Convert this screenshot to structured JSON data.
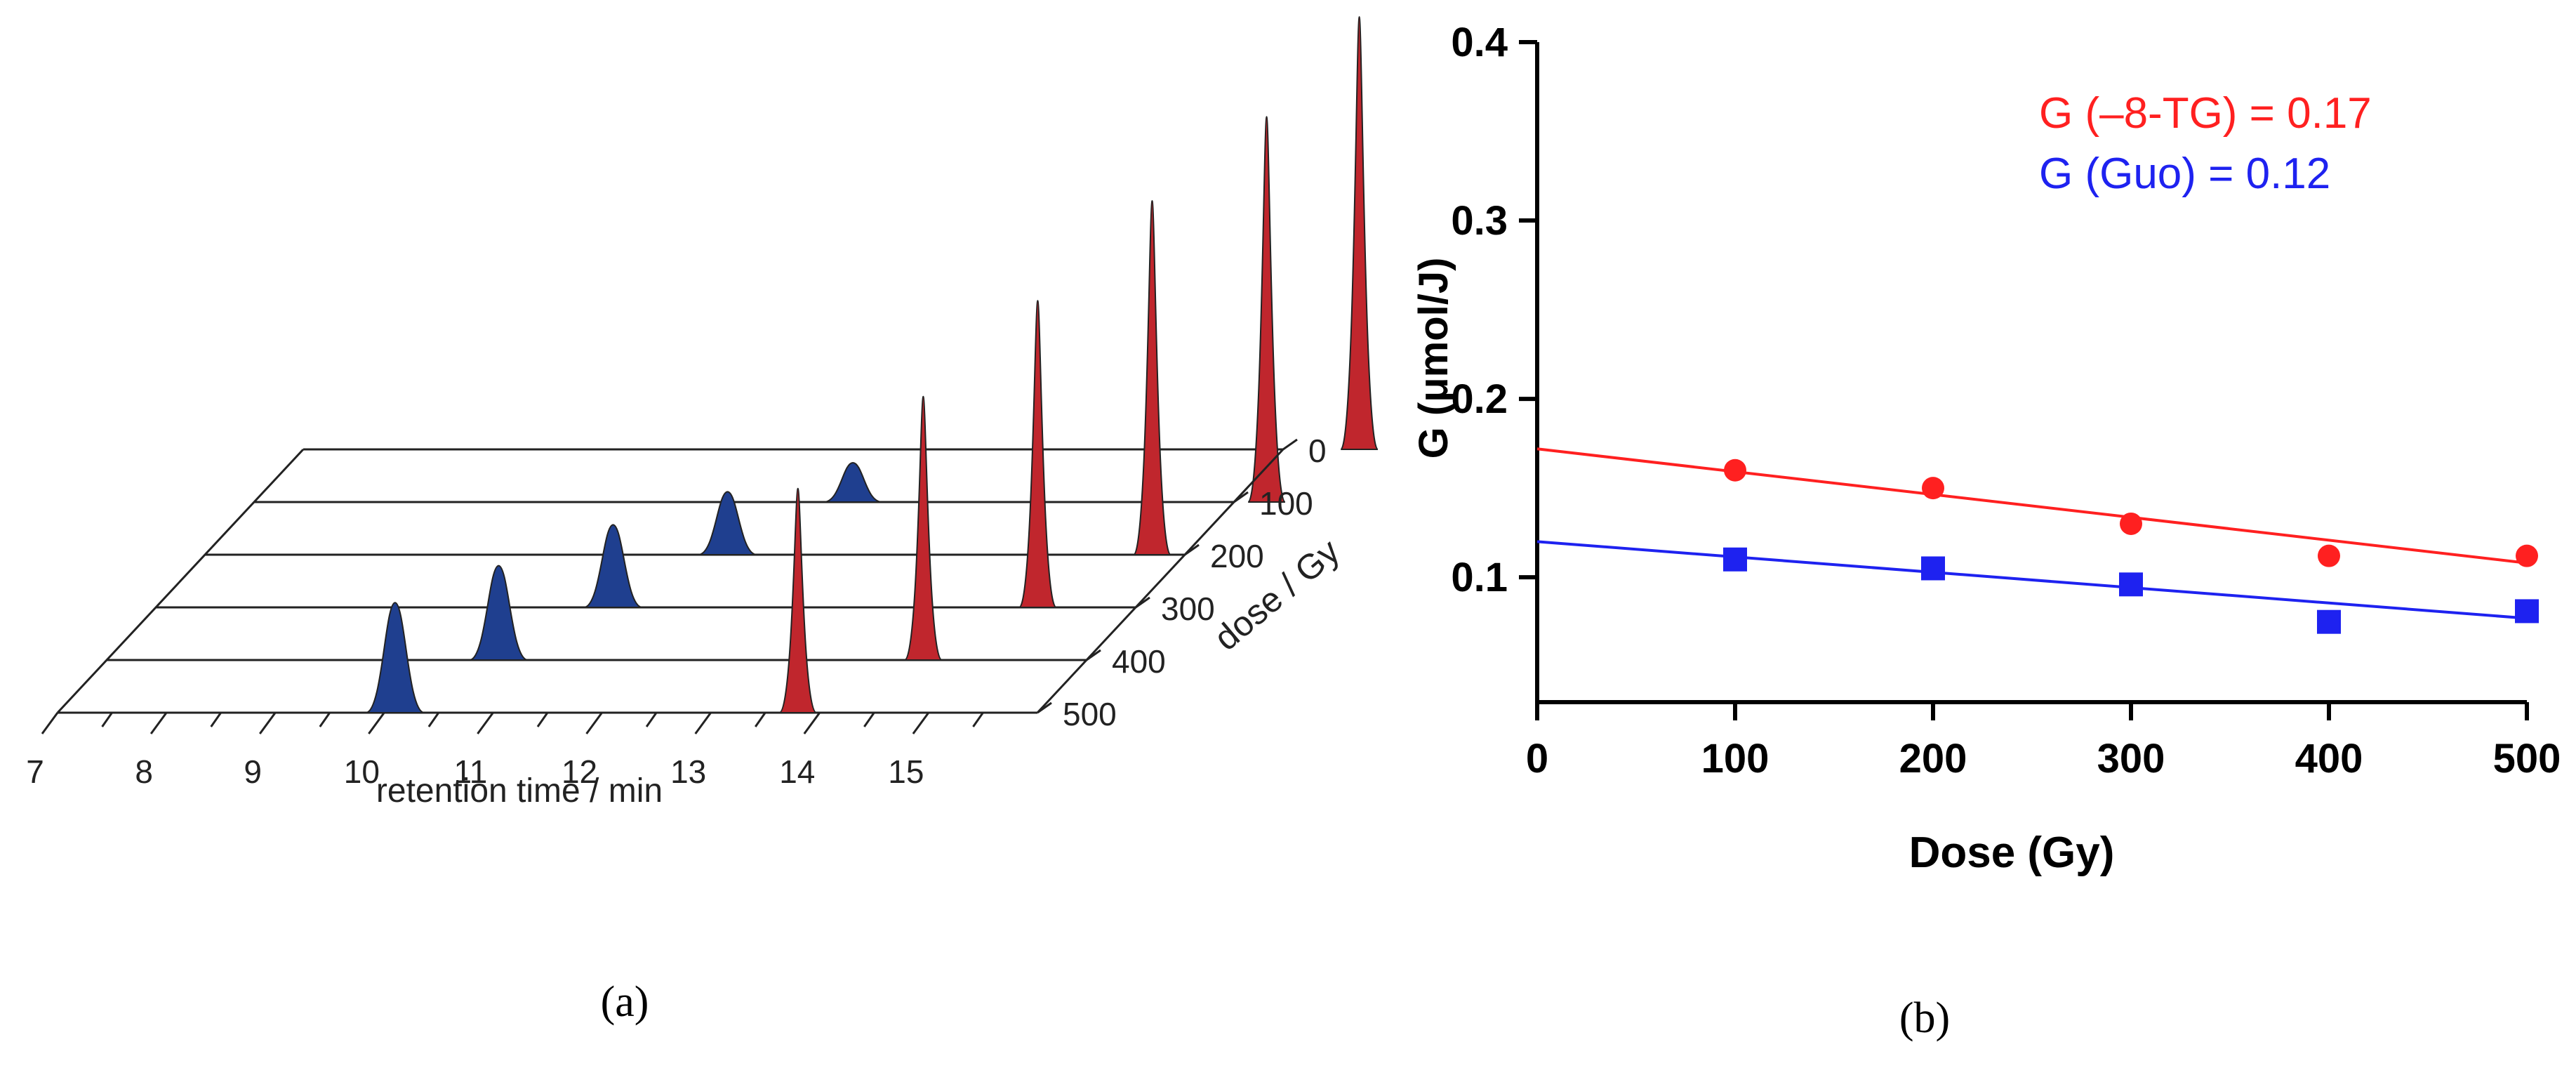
{
  "chart_data": [
    {
      "panel": "a",
      "type": "line",
      "caption": "(a)",
      "xlabel": "retention time / min",
      "zlabel": "dose / Gy",
      "x_tick_labels": [
        "7",
        "8",
        "9",
        "10",
        "11",
        "12",
        "13",
        "14",
        "15"
      ],
      "xlim": [
        7,
        16
      ],
      "dose_labels": [
        "0",
        "100",
        "200",
        "300",
        "400",
        "500"
      ],
      "blue_peak": {
        "color": "#1f3f8f",
        "retention_min": [
          null,
          12.5,
          11.8,
          11.2,
          10.6,
          10.1
        ],
        "height_rel": [
          0,
          0.1,
          0.16,
          0.21,
          0.24,
          0.28
        ]
      },
      "red_peak": {
        "color": "#c0262d",
        "retention_min": [
          16.7,
          16.3,
          15.7,
          15.1,
          14.5,
          13.8
        ],
        "height_rel": [
          1.1,
          0.98,
          0.9,
          0.78,
          0.67,
          0.57
        ]
      }
    },
    {
      "panel": "b",
      "type": "scatter",
      "caption": "(b)",
      "xlabel": "Dose (Gy)",
      "ylabel": "G (μmol/J)",
      "xlim": [
        0,
        500
      ],
      "ylim": [
        0.03,
        0.4
      ],
      "x_ticks": [
        0,
        100,
        200,
        300,
        400,
        500
      ],
      "y_ticks": [
        0.1,
        0.2,
        0.3,
        0.4
      ],
      "x_tick_labels": [
        "0",
        "100",
        "200",
        "300",
        "400",
        "500"
      ],
      "y_tick_labels": [
        "0.1",
        "0.2",
        "0.3",
        "0.4"
      ],
      "series": [
        {
          "name": "G (–8-TG) = 0.17",
          "color": "#ff2020",
          "marker": "circle",
          "x": [
            100,
            200,
            300,
            400,
            500
          ],
          "y": [
            0.16,
            0.15,
            0.13,
            0.112,
            0.112
          ],
          "fit": [
            0.172,
            0.108
          ]
        },
        {
          "name": "G (Guo) = 0.12",
          "color": "#1e22f0",
          "marker": "square",
          "x": [
            100,
            200,
            300,
            400,
            500
          ],
          "y": [
            0.11,
            0.105,
            0.096,
            0.075,
            0.081
          ],
          "fit": [
            0.12,
            0.077
          ]
        }
      ]
    }
  ]
}
